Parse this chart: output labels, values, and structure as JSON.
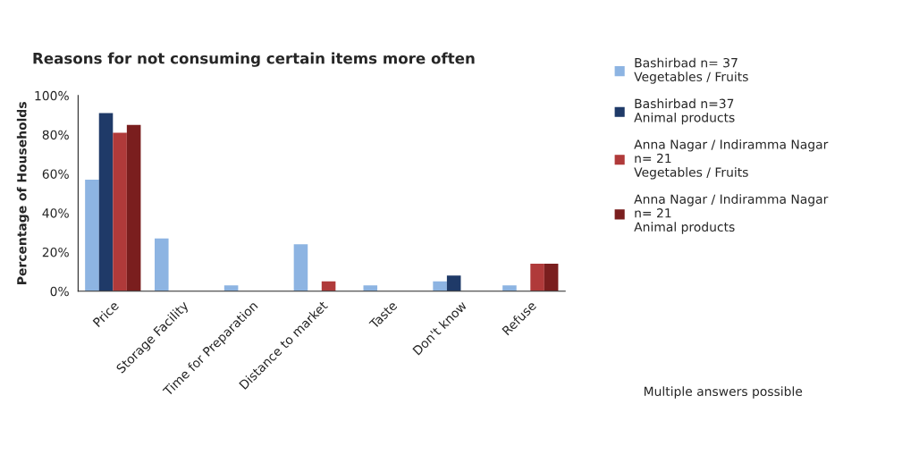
{
  "chart_data": {
    "type": "bar",
    "title": "Reasons for not consuming certain items more often",
    "ylabel": "Percentage of Households",
    "categories": [
      "Price",
      "Storage Facility",
      "Time for Preparation",
      "Distance to market",
      "Taste",
      "Don't know",
      "Refuse"
    ],
    "series": [
      {
        "name": "Bashirbad n= 37\nVegetables / Fruits",
        "color": "#8db4e2",
        "values": [
          57,
          27,
          3,
          24,
          3,
          5,
          3
        ]
      },
      {
        "name": "Bashirbad n=37\nAnimal products",
        "color": "#1f3a68",
        "values": [
          91,
          0,
          0,
          0,
          0,
          8,
          0
        ]
      },
      {
        "name": "Anna Nagar / Indiramma Nagar\nn= 21\nVegetables / Fruits",
        "color": "#b03a3a",
        "values": [
          81,
          0,
          0,
          5,
          0,
          0,
          14
        ]
      },
      {
        "name": "Anna Nagar / Indiramma Nagar\nn= 21\nAnimal products",
        "color": "#7a1e1e",
        "values": [
          85,
          0,
          0,
          0,
          0,
          0,
          14
        ]
      }
    ],
    "ylim": [
      0,
      100
    ],
    "yticks": [
      {
        "value": 0,
        "label": "0%"
      },
      {
        "value": 20,
        "label": "20%"
      },
      {
        "value": 40,
        "label": "40%"
      },
      {
        "value": 60,
        "label": "60%"
      },
      {
        "value": 80,
        "label": "80%"
      },
      {
        "value": 100,
        "label": "100%"
      }
    ],
    "grid": false,
    "legend": "right",
    "annotations": [
      "Multiple answers possible"
    ]
  }
}
